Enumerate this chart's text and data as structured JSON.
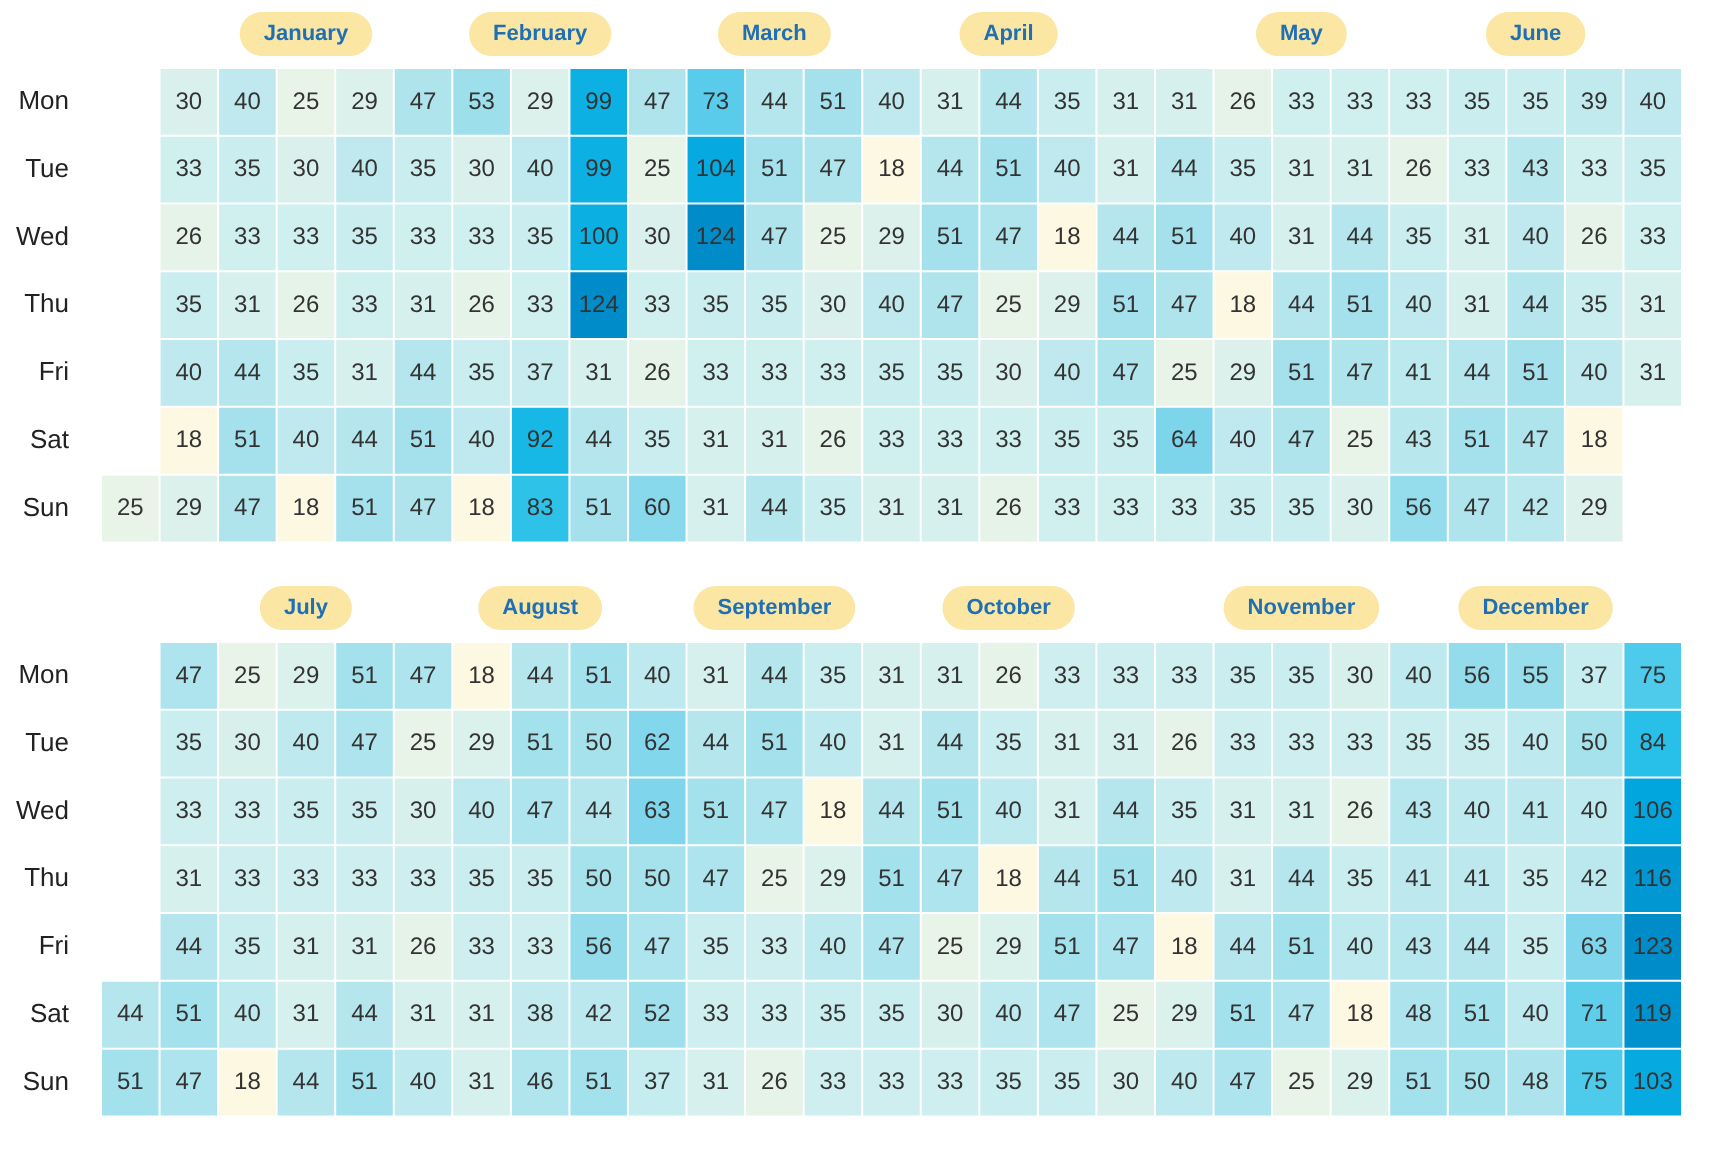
{
  "chart_data": [
    {
      "type": "heatmap",
      "data_labels": true,
      "categories": [
        null,
        null,
        null,
        "January",
        null,
        null,
        null,
        "February",
        null,
        null,
        null,
        "March",
        null,
        null,
        null,
        "April",
        null,
        null,
        null,
        null,
        "May",
        null,
        null,
        null,
        "June",
        null,
        null
      ],
      "y_categories": [
        "Mon",
        "Tue",
        "Wed",
        "Thu",
        "Fri",
        "Sat",
        "Sun"
      ],
      "cells": [
        [
          null,
          30,
          40,
          25,
          29,
          47,
          53,
          29,
          99,
          47,
          73,
          44,
          51,
          40,
          31,
          44,
          35,
          31,
          31,
          26,
          33,
          33,
          33,
          35,
          35,
          39,
          40
        ],
        [
          null,
          33,
          35,
          30,
          40,
          35,
          30,
          40,
          99,
          25,
          104,
          51,
          47,
          18,
          44,
          51,
          40,
          31,
          44,
          35,
          31,
          31,
          26,
          33,
          43,
          33,
          35
        ],
        [
          null,
          26,
          33,
          33,
          35,
          33,
          33,
          35,
          100,
          30,
          124,
          47,
          25,
          29,
          51,
          47,
          18,
          44,
          51,
          40,
          31,
          44,
          35,
          31,
          40,
          26,
          33
        ],
        [
          null,
          35,
          31,
          26,
          33,
          31,
          26,
          33,
          124,
          33,
          35,
          35,
          30,
          40,
          47,
          25,
          29,
          51,
          47,
          18,
          44,
          51,
          40,
          31,
          44,
          35,
          31
        ],
        [
          null,
          40,
          44,
          35,
          31,
          44,
          35,
          37,
          31,
          26,
          33,
          33,
          33,
          35,
          35,
          30,
          40,
          47,
          25,
          29,
          51,
          47,
          41,
          44,
          51,
          40,
          31
        ],
        [
          null,
          18,
          51,
          40,
          44,
          51,
          40,
          92,
          44,
          35,
          31,
          31,
          26,
          33,
          33,
          33,
          35,
          35,
          64,
          40,
          47,
          25,
          43,
          51,
          47,
          18,
          null
        ],
        [
          25,
          29,
          47,
          18,
          51,
          47,
          18,
          83,
          51,
          60,
          31,
          44,
          35,
          31,
          31,
          26,
          33,
          33,
          33,
          35,
          35,
          30,
          56,
          47,
          42,
          29,
          null
        ]
      ]
    },
    {
      "type": "heatmap",
      "data_labels": true,
      "categories": [
        null,
        null,
        null,
        "July",
        null,
        null,
        null,
        "August",
        null,
        null,
        null,
        "September",
        null,
        null,
        null,
        "October",
        null,
        null,
        null,
        null,
        "November",
        null,
        null,
        null,
        "December",
        null,
        null
      ],
      "y_categories": [
        "Mon",
        "Tue",
        "Wed",
        "Thu",
        "Fri",
        "Sat",
        "Sun"
      ],
      "cells": [
        [
          null,
          47,
          25,
          29,
          51,
          47,
          18,
          44,
          51,
          40,
          31,
          44,
          35,
          31,
          31,
          26,
          33,
          33,
          33,
          35,
          35,
          30,
          40,
          56,
          55,
          37,
          75
        ],
        [
          null,
          35,
          30,
          40,
          47,
          25,
          29,
          51,
          50,
          62,
          44,
          51,
          40,
          31,
          44,
          35,
          31,
          31,
          26,
          33,
          33,
          33,
          35,
          35,
          40,
          50,
          84
        ],
        [
          null,
          33,
          33,
          35,
          35,
          30,
          40,
          47,
          44,
          63,
          51,
          47,
          18,
          44,
          51,
          40,
          31,
          44,
          35,
          31,
          31,
          26,
          43,
          40,
          41,
          40,
          106
        ],
        [
          null,
          31,
          33,
          33,
          33,
          33,
          35,
          35,
          50,
          50,
          47,
          25,
          29,
          51,
          47,
          18,
          44,
          51,
          40,
          31,
          44,
          35,
          41,
          41,
          35,
          42,
          116
        ],
        [
          null,
          44,
          35,
          31,
          31,
          26,
          33,
          33,
          56,
          47,
          35,
          33,
          40,
          47,
          25,
          29,
          51,
          47,
          18,
          44,
          51,
          40,
          43,
          44,
          35,
          63,
          123
        ],
        [
          44,
          51,
          40,
          31,
          44,
          31,
          31,
          38,
          42,
          52,
          33,
          33,
          35,
          35,
          30,
          40,
          47,
          25,
          29,
          51,
          47,
          18,
          48,
          51,
          40,
          71,
          119
        ],
        [
          51,
          47,
          18,
          44,
          51,
          40,
          31,
          46,
          51,
          37,
          31,
          26,
          33,
          33,
          33,
          35,
          35,
          30,
          40,
          47,
          25,
          29,
          51,
          50,
          48,
          75,
          103
        ]
      ]
    }
  ]
}
